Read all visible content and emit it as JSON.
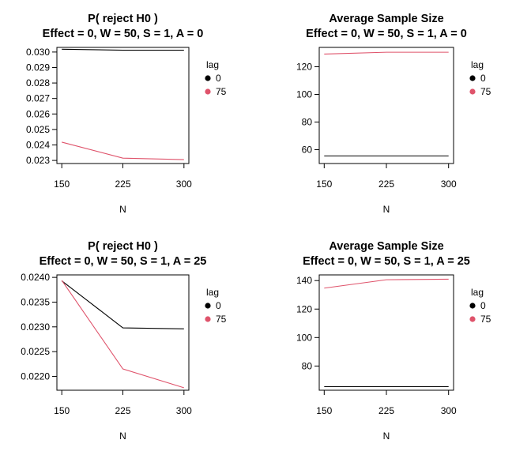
{
  "chart_data": [
    {
      "type": "line",
      "title": "P( reject H0 )",
      "subtitle": "Effect = 0, W = 50, S = 1, A = 0",
      "xlabel": "N",
      "ylabel": "",
      "x": [
        150,
        225,
        300
      ],
      "ylim": [
        0.0228,
        0.0303
      ],
      "yticks": [
        "0.023",
        "0.024",
        "0.025",
        "0.026",
        "0.027",
        "0.028",
        "0.029",
        "0.030"
      ],
      "series": [
        {
          "name": "0",
          "color": "#000000",
          "values": [
            0.03018,
            0.03012,
            0.03012
          ]
        },
        {
          "name": "75",
          "color": "#df536b",
          "values": [
            0.02418,
            0.02315,
            0.02305
          ]
        }
      ],
      "legend": {
        "title": "lag",
        "position": "right"
      },
      "grid": false
    },
    {
      "type": "line",
      "title": "Average Sample Size",
      "subtitle": "Effect = 0, W = 50, S = 1, A = 0",
      "xlabel": "N",
      "ylabel": "",
      "x": [
        150,
        225,
        300
      ],
      "ylim": [
        50,
        134
      ],
      "yticks": [
        "60",
        "80",
        "100",
        "120"
      ],
      "series": [
        {
          "name": "0",
          "color": "#000000",
          "values": [
            55.5,
            55.5,
            55.5
          ]
        },
        {
          "name": "75",
          "color": "#df536b",
          "values": [
            129.2,
            130.5,
            130.5
          ]
        }
      ],
      "legend": {
        "title": "lag",
        "position": "right"
      },
      "grid": false
    },
    {
      "type": "line",
      "title": "P( reject H0 )",
      "subtitle": "Effect = 0, W = 50, S = 1, A = 25",
      "xlabel": "N",
      "ylabel": "",
      "x": [
        150,
        225,
        300
      ],
      "ylim": [
        0.02172,
        0.02405
      ],
      "yticks": [
        "0.0220",
        "0.0225",
        "0.0230",
        "0.0235",
        "0.0240"
      ],
      "series": [
        {
          "name": "0",
          "color": "#000000",
          "values": [
            0.02393,
            0.02298,
            0.02296
          ]
        },
        {
          "name": "75",
          "color": "#df536b",
          "values": [
            0.02394,
            0.02215,
            0.02177
          ]
        }
      ],
      "legend": {
        "title": "lag",
        "position": "right"
      },
      "grid": false
    },
    {
      "type": "line",
      "title": "Average Sample Size",
      "subtitle": "Effect = 0, W = 50, S = 1, A = 25",
      "xlabel": "N",
      "ylabel": "",
      "x": [
        150,
        225,
        300
      ],
      "ylim": [
        63,
        144
      ],
      "yticks": [
        "80",
        "100",
        "120",
        "140"
      ],
      "series": [
        {
          "name": "0",
          "color": "#000000",
          "values": [
            65.5,
            65.5,
            65.5
          ]
        },
        {
          "name": "75",
          "color": "#df536b",
          "values": [
            134.7,
            140.6,
            141.0
          ]
        }
      ],
      "legend": {
        "title": "lag",
        "position": "right"
      },
      "grid": false
    }
  ]
}
